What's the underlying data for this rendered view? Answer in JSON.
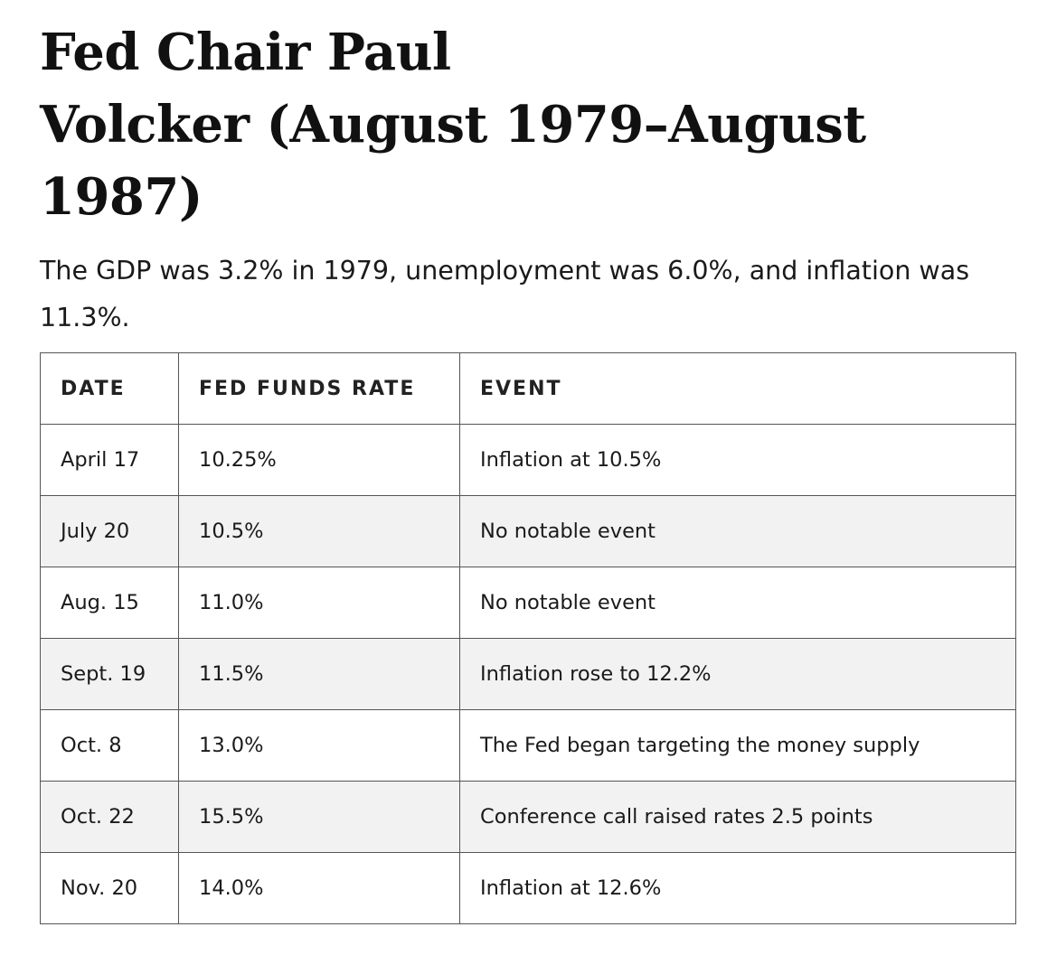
{
  "article": {
    "title_line1": "Fed Chair Paul",
    "title_line2": "Volcker (August 1979–August 1987)",
    "intro": "The GDP was 3.2% in 1979, unemployment was 6.0%, and inflation was 11.3%."
  },
  "table": {
    "headers": [
      "DATE",
      "FED FUNDS RATE",
      "EVENT"
    ],
    "rows": [
      {
        "date": "April 17",
        "rate": "10.25%",
        "event": "Inflation at 10.5%"
      },
      {
        "date": "July 20",
        "rate": "10.5%",
        "event": "No notable event"
      },
      {
        "date": "Aug. 15",
        "rate": "11.0%",
        "event": "No notable event"
      },
      {
        "date": "Sept. 19",
        "rate": "11.5%",
        "event": "Inflation rose to 12.2%"
      },
      {
        "date": "Oct. 8",
        "rate": "13.0%",
        "event": "The Fed began targeting the money supply"
      },
      {
        "date": "Oct. 22",
        "rate": "15.5%",
        "event": "Conference call raised rates 2.5 points"
      },
      {
        "date": "Nov. 20",
        "rate": "14.0%",
        "event": "Inflation at 12.6%"
      }
    ]
  },
  "colors": {
    "text": "#111111",
    "border": "#555555",
    "stripe": "#f2f2f2"
  }
}
